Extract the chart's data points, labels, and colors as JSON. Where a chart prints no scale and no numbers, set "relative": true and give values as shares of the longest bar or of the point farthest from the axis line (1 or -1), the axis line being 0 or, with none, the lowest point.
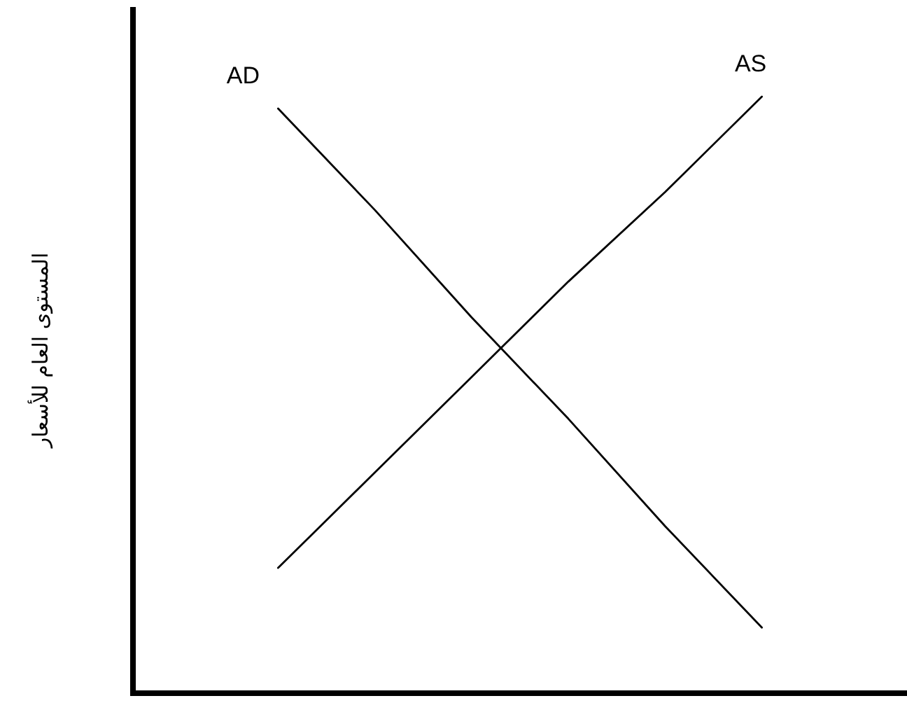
{
  "chart_data": {
    "type": "line",
    "ylabel": "المستوى العام للأسعار",
    "categories": [
      null,
      null,
      null,
      null,
      null,
      null,
      null,
      null
    ],
    "relative": true,
    "series": [
      {
        "name": "AD",
        "color": "#000000",
        "values": [
          null,
          0.98,
          0.81,
          0.63,
          0.46,
          0.28,
          0.11,
          null
        ]
      },
      {
        "name": "AS",
        "color": "#000000",
        "values": [
          null,
          0.21,
          0.37,
          0.53,
          0.69,
          0.84,
          1.0,
          null
        ]
      }
    ]
  }
}
